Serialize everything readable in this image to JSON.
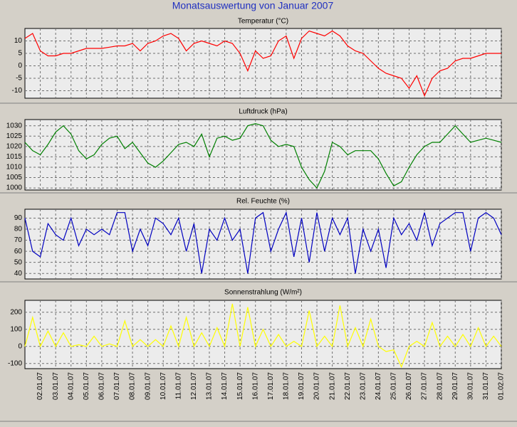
{
  "page_title": "Monatsauswertung von Januar 2007",
  "chart_data": [
    {
      "type": "line",
      "title": "Temperatur (°C)",
      "color": "#ff0000",
      "ylim": [
        -13,
        15
      ],
      "yticks": [
        -10,
        -5,
        0,
        5,
        10
      ],
      "grid": true,
      "x": [
        0,
        0.5,
        1,
        1.5,
        2,
        2.5,
        3,
        3.5,
        4,
        4.5,
        5,
        5.5,
        6,
        6.5,
        7,
        7.5,
        8,
        8.5,
        9,
        9.5,
        10,
        10.5,
        11,
        11.5,
        12,
        12.5,
        13,
        13.5,
        14,
        14.5,
        15,
        15.5,
        16,
        16.5,
        17,
        17.5,
        18,
        18.5,
        19,
        19.5,
        20,
        20.5,
        21,
        21.5,
        22,
        22.5,
        23,
        23.5,
        24,
        24.5,
        25,
        25.5,
        26,
        26.5,
        27,
        27.5,
        28,
        28.5,
        29,
        29.5,
        30,
        30.5,
        31
      ],
      "values": [
        11,
        13,
        6,
        4,
        4,
        5,
        5,
        6,
        7,
        7,
        7,
        7.5,
        8,
        8,
        9,
        6,
        9,
        10,
        12,
        13,
        11,
        6,
        9,
        10,
        9,
        8,
        10,
        9,
        5,
        -2,
        6,
        3,
        4,
        10,
        12,
        3,
        11,
        14,
        13,
        12,
        14,
        12,
        8,
        6,
        5,
        2,
        -1,
        -3,
        -4,
        -5,
        -9,
        -4,
        -12,
        -5,
        -2,
        -1,
        2,
        3,
        3,
        4,
        5,
        5,
        5
      ]
    },
    {
      "type": "line",
      "title": "Luftdruck (hPa)",
      "color": "#008000",
      "ylim": [
        999,
        1033
      ],
      "yticks": [
        1000,
        1005,
        1010,
        1015,
        1020,
        1025,
        1030
      ],
      "grid": true,
      "x": [
        0,
        0.5,
        1,
        1.5,
        2,
        2.5,
        3,
        3.5,
        4,
        4.5,
        5,
        5.5,
        6,
        6.5,
        7,
        7.5,
        8,
        8.5,
        9,
        9.5,
        10,
        10.5,
        11,
        11.5,
        12,
        12.5,
        13,
        13.5,
        14,
        14.5,
        15,
        15.5,
        16,
        16.5,
        17,
        17.5,
        18,
        18.5,
        19,
        19.5,
        20,
        20.5,
        21,
        21.5,
        22,
        22.5,
        23,
        23.5,
        24,
        24.5,
        25,
        25.5,
        26,
        26.5,
        27,
        27.5,
        28,
        28.5,
        29,
        29.5,
        30,
        30.5,
        31
      ],
      "values": [
        1022,
        1018,
        1016,
        1021,
        1027,
        1030,
        1026,
        1018,
        1014,
        1016,
        1021,
        1024,
        1025,
        1019,
        1022,
        1017,
        1012,
        1010,
        1013,
        1017,
        1021,
        1022,
        1020,
        1026,
        1015,
        1024,
        1025,
        1023,
        1024,
        1030,
        1031,
        1030,
        1023,
        1020,
        1021,
        1020,
        1010,
        1004,
        1000,
        1008,
        1022,
        1020,
        1016,
        1018,
        1018,
        1018,
        1014,
        1007,
        1001,
        1003,
        1010,
        1016,
        1020,
        1022,
        1022,
        1026,
        1030,
        1026,
        1022,
        1023,
        1024,
        1023,
        1022
      ]
    },
    {
      "type": "line",
      "title": "Rel. Feuchte (%)",
      "color": "#0000c0",
      "ylim": [
        35,
        98
      ],
      "yticks": [
        40,
        50,
        60,
        70,
        80,
        90
      ],
      "grid": true,
      "x": [
        0,
        0.5,
        1,
        1.5,
        2,
        2.5,
        3,
        3.5,
        4,
        4.5,
        5,
        5.5,
        6,
        6.5,
        7,
        7.5,
        8,
        8.5,
        9,
        9.5,
        10,
        10.5,
        11,
        11.5,
        12,
        12.5,
        13,
        13.5,
        14,
        14.5,
        15,
        15.5,
        16,
        16.5,
        17,
        17.5,
        18,
        18.5,
        19,
        19.5,
        20,
        20.5,
        21,
        21.5,
        22,
        22.5,
        23,
        23.5,
        24,
        24.5,
        25,
        25.5,
        26,
        26.5,
        27,
        27.5,
        28,
        28.5,
        29,
        29.5,
        30,
        30.5,
        31
      ],
      "values": [
        90,
        60,
        55,
        85,
        75,
        70,
        90,
        65,
        80,
        75,
        80,
        75,
        95,
        95,
        60,
        80,
        65,
        90,
        85,
        75,
        90,
        60,
        85,
        40,
        80,
        70,
        90,
        70,
        80,
        40,
        90,
        95,
        60,
        80,
        95,
        55,
        90,
        50,
        95,
        60,
        90,
        75,
        90,
        40,
        80,
        60,
        80,
        45,
        90,
        75,
        85,
        70,
        95,
        65,
        85,
        90,
        95,
        95,
        60,
        90,
        95,
        90,
        75
      ]
    },
    {
      "type": "line",
      "title": "Sonnenstrahlung (W/m²)",
      "color": "#ffff00",
      "ylim": [
        -130,
        270
      ],
      "yticks": [
        -100,
        0,
        100,
        200
      ],
      "grid": true,
      "xlim": [
        0,
        31
      ],
      "xticks": [
        {
          "value": 1,
          "label": "02.01.07"
        },
        {
          "value": 2,
          "label": "03.01.07"
        },
        {
          "value": 3,
          "label": "04.01.07"
        },
        {
          "value": 4,
          "label": "05.01.07"
        },
        {
          "value": 5,
          "label": "06.01.07"
        },
        {
          "value": 6,
          "label": "07.01.07"
        },
        {
          "value": 7,
          "label": "08.01.07"
        },
        {
          "value": 8,
          "label": "09.01.07"
        },
        {
          "value": 9,
          "label": "10.01.07"
        },
        {
          "value": 10,
          "label": "11.01.07"
        },
        {
          "value": 11,
          "label": "12.01.07"
        },
        {
          "value": 12,
          "label": "13.01.07"
        },
        {
          "value": 13,
          "label": "14.01.07"
        },
        {
          "value": 14,
          "label": "15.01.07"
        },
        {
          "value": 15,
          "label": "16.01.07"
        },
        {
          "value": 16,
          "label": "17.01.07"
        },
        {
          "value": 17,
          "label": "18.01.07"
        },
        {
          "value": 18,
          "label": "19.01.07"
        },
        {
          "value": 19,
          "label": "20.01.07"
        },
        {
          "value": 20,
          "label": "21.01.07"
        },
        {
          "value": 21,
          "label": "22.01.07"
        },
        {
          "value": 22,
          "label": "23.01.07"
        },
        {
          "value": 23,
          "label": "24.01.07"
        },
        {
          "value": 24,
          "label": "25.01.07"
        },
        {
          "value": 25,
          "label": "26.01.07"
        },
        {
          "value": 26,
          "label": "27.01.07"
        },
        {
          "value": 27,
          "label": "28.01.07"
        },
        {
          "value": 28,
          "label": "29.01.07"
        },
        {
          "value": 29,
          "label": "30.01.07"
        },
        {
          "value": 30,
          "label": "31.01.07"
        },
        {
          "value": 31,
          "label": "01.02.07"
        }
      ],
      "x": [
        0,
        0.5,
        1,
        1.5,
        2,
        2.5,
        3,
        3.5,
        4,
        4.5,
        5,
        5.5,
        6,
        6.5,
        7,
        7.5,
        8,
        8.5,
        9,
        9.5,
        10,
        10.5,
        11,
        11.5,
        12,
        12.5,
        13,
        13.5,
        14,
        14.5,
        15,
        15.5,
        16,
        16.5,
        17,
        17.5,
        18,
        18.5,
        19,
        19.5,
        20,
        20.5,
        21,
        21.5,
        22,
        22.5,
        23,
        23.5,
        24,
        24.5,
        25,
        25.5,
        26,
        26.5,
        27,
        27.5,
        28,
        28.5,
        29,
        29.5,
        30,
        30.5,
        31
      ],
      "values": [
        0,
        170,
        0,
        90,
        0,
        80,
        0,
        10,
        0,
        60,
        0,
        15,
        0,
        150,
        0,
        40,
        0,
        40,
        0,
        120,
        0,
        170,
        0,
        80,
        0,
        110,
        0,
        250,
        0,
        230,
        0,
        100,
        0,
        70,
        0,
        30,
        0,
        210,
        0,
        60,
        0,
        240,
        0,
        110,
        0,
        160,
        0,
        -30,
        -20,
        -120,
        0,
        30,
        0,
        140,
        0,
        60,
        0,
        70,
        0,
        110,
        0,
        60,
        0
      ]
    }
  ]
}
